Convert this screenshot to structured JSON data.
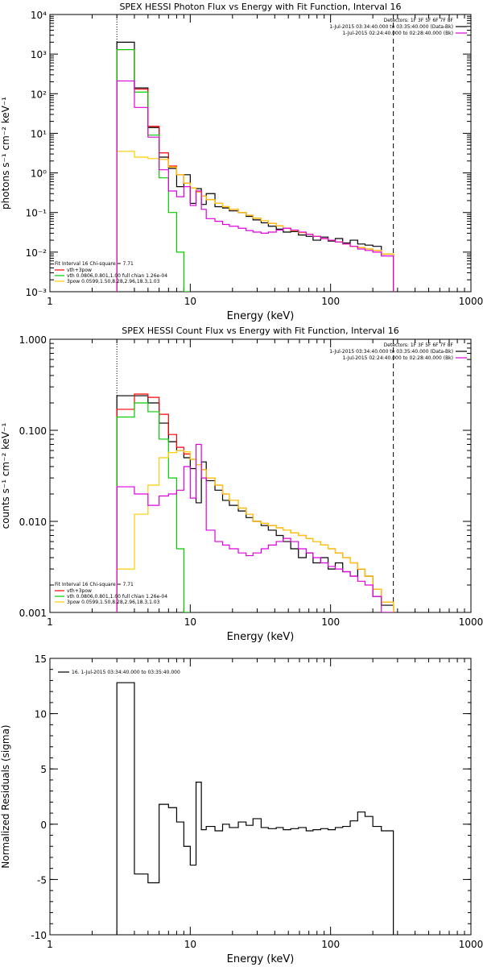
{
  "chart_data": [
    {
      "type": "line",
      "title": "SPEX HESSI Photon Flux vs Energy with Fit Function, Interval 16",
      "xlabel": "Energy (keV)",
      "ylabel": "photons s⁻¹ cm⁻² keV⁻¹",
      "xscale": "log",
      "yscale": "log",
      "xlim": [
        1,
        1000
      ],
      "ylim": [
        0.001,
        10000
      ],
      "xticks": [
        1,
        10,
        100,
        1000
      ],
      "xtick_labels": [
        "1",
        "10",
        "100",
        "1000"
      ],
      "yticks": [
        0.001,
        0.01,
        0.1,
        1,
        10,
        100,
        1000,
        10000
      ],
      "ytick_labels": [
        "10⁻³",
        "10⁻²",
        "10⁻¹",
        "10⁰",
        "10¹",
        "10²",
        "10³",
        "10⁴"
      ],
      "vlines": [
        {
          "x": 3.0,
          "style": "dotted"
        },
        {
          "x": 280,
          "style": "dashed"
        }
      ],
      "legend_top_right": [
        "Detectors: 1F 3F 5F 6F 7F 8F",
        "1-Jul-2015 03:34:40.000 to 03:35:40.000 (Data-Bk)",
        "1-Jul-2015 02:24:40.000 to 02:28:40.000 (Bk)"
      ],
      "legend_bottom_left": {
        "header": "Fit Interval 16   Chi-square = 7.71",
        "entries": [
          "vth+3pow",
          "vth 0.0806,0.801,1.00  full chian 1.26e-04",
          "3pow 0.0599,1.50,8.28,2.96,18.3,1.03"
        ]
      },
      "series": [
        {
          "name": "1-Jul-2015 03:34:40.000 to 03:35:40.000 (Data-Bk)",
          "color": "#000000",
          "edges": [
            3,
            4,
            5,
            6,
            7,
            8,
            9,
            10,
            11,
            12,
            13,
            15,
            17,
            19,
            22,
            25,
            28,
            32,
            36,
            41,
            46,
            52,
            59,
            67,
            75,
            85,
            96,
            108,
            122,
            138,
            156,
            176,
            200,
            230,
            280
          ],
          "values": [
            2000,
            140,
            14,
            2.5,
            1.3,
            0.45,
            0.9,
            0.17,
            0.4,
            0.16,
            0.3,
            0.14,
            0.13,
            0.11,
            0.1,
            0.08,
            0.065,
            0.055,
            0.045,
            0.038,
            0.032,
            0.033,
            0.027,
            0.025,
            0.02,
            0.024,
            0.019,
            0.022,
            0.017,
            0.02,
            0.016,
            0.015,
            0.014,
            0.009
          ]
        },
        {
          "name": "vth+3pow",
          "color": "#ff0000",
          "edges": [
            3,
            4,
            5,
            6,
            7,
            8,
            9,
            10,
            11,
            12,
            13,
            15,
            17,
            19,
            22,
            25,
            28,
            32,
            36,
            41,
            46,
            52,
            59,
            67,
            75,
            85,
            96,
            108,
            122,
            138,
            156,
            176,
            200,
            230,
            280
          ],
          "values": [
            1300,
            130,
            15,
            3.2,
            1.5,
            0.9,
            0.55,
            0.42,
            0.33,
            0.26,
            0.21,
            0.17,
            0.14,
            0.12,
            0.1,
            0.085,
            0.072,
            0.062,
            0.053,
            0.046,
            0.04,
            0.035,
            0.031,
            0.028,
            0.025,
            0.022,
            0.02,
            0.018,
            0.016,
            0.014,
            0.013,
            0.012,
            0.011,
            0.009
          ]
        },
        {
          "name": "vth 0.0806,0.801,1.00  full chian 1.26e-04",
          "color": "#00cc00",
          "edges": [
            3,
            4,
            5,
            6,
            7,
            8,
            9,
            10
          ],
          "values": [
            1300,
            110,
            9,
            0.75,
            0.1,
            0.01,
            0.001
          ]
        },
        {
          "name": "3pow 0.0599,1.50,8.28,2.96,18.3,1.03",
          "color": "#ffcc00",
          "edges": [
            3,
            4,
            5,
            6,
            7,
            8,
            9,
            10,
            11,
            12,
            13,
            15,
            17,
            19,
            22,
            25,
            28,
            32,
            36,
            41,
            46,
            52,
            59,
            67,
            75,
            85,
            96,
            108,
            122,
            138,
            156,
            176,
            200,
            230,
            280
          ],
          "values": [
            3.5,
            2.5,
            2.3,
            2.2,
            1.4,
            0.9,
            0.55,
            0.42,
            0.33,
            0.26,
            0.21,
            0.17,
            0.14,
            0.12,
            0.1,
            0.085,
            0.072,
            0.062,
            0.053,
            0.046,
            0.04,
            0.035,
            0.031,
            0.028,
            0.025,
            0.022,
            0.02,
            0.018,
            0.016,
            0.014,
            0.013,
            0.012,
            0.011,
            0.009
          ]
        },
        {
          "name": "1-Jul-2015 02:24:40.000 to 02:28:40.000 (Bk)",
          "color": "#dd00dd",
          "edges": [
            3,
            4,
            5,
            6,
            7,
            8,
            9,
            10,
            11,
            12,
            13,
            15,
            17,
            19,
            22,
            25,
            28,
            32,
            36,
            41,
            46,
            52,
            59,
            67,
            75,
            85,
            96,
            108,
            122,
            138,
            156,
            176,
            200,
            230,
            280
          ],
          "values": [
            210,
            45,
            8,
            1.2,
            0.35,
            0.25,
            0.45,
            0.15,
            0.35,
            0.12,
            0.07,
            0.06,
            0.05,
            0.045,
            0.04,
            0.035,
            0.032,
            0.03,
            0.032,
            0.036,
            0.04,
            0.036,
            0.032,
            0.028,
            0.025,
            0.022,
            0.02,
            0.018,
            0.016,
            0.014,
            0.012,
            0.011,
            0.01,
            0.008
          ]
        }
      ]
    },
    {
      "type": "line",
      "title": "SPEX HESSI Count Flux vs Energy with Fit Function, Interval 16",
      "xlabel": "Energy (keV)",
      "ylabel": "counts s⁻¹ cm⁻² keV⁻¹",
      "xscale": "log",
      "yscale": "log",
      "xlim": [
        1,
        1000
      ],
      "ylim": [
        0.001,
        1.0
      ],
      "xticks": [
        1,
        10,
        100,
        1000
      ],
      "xtick_labels": [
        "1",
        "10",
        "100",
        "1000"
      ],
      "yticks": [
        0.001,
        0.01,
        0.1,
        1.0
      ],
      "ytick_labels": [
        "0.001",
        "0.010",
        "0.100",
        "1.000"
      ],
      "vlines": [
        {
          "x": 3.0,
          "style": "dotted"
        },
        {
          "x": 280,
          "style": "dashed"
        }
      ],
      "legend_top_right": [
        "Detectors: 1F 3F 5F 6F 7F 8F",
        "1-Jul-2015 03:34:40.000 to 03:35:40.000 (Data-Bk)",
        "1-Jul-2015 02:24:40.000 to 02:28:40.000 (Bk)"
      ],
      "legend_bottom_left": {
        "header": "Fit Interval 16   Chi-square = 7.71",
        "entries": [
          "vth+3pow",
          "vth 0.0806,0.801,1.00  full chian 1.26e-04",
          "3pow 0.0599,1.50,8.28,2.96,18.3,1.03"
        ]
      },
      "series": [
        {
          "name": "1-Jul-2015 03:34:40.000 to 03:35:40.000 (Data-Bk)",
          "color": "#000000",
          "edges": [
            3,
            4,
            5,
            6,
            7,
            8,
            9,
            10,
            11,
            12,
            13,
            15,
            17,
            19,
            22,
            25,
            28,
            32,
            36,
            41,
            46,
            52,
            59,
            67,
            75,
            85,
            96,
            108,
            122,
            138,
            156,
            176,
            200,
            230,
            280
          ],
          "values": [
            0.24,
            0.24,
            0.2,
            0.12,
            0.075,
            0.06,
            0.05,
            0.038,
            0.016,
            0.045,
            0.028,
            0.022,
            0.017,
            0.015,
            0.013,
            0.011,
            0.01,
            0.009,
            0.008,
            0.007,
            0.006,
            0.005,
            0.004,
            0.0045,
            0.0035,
            0.004,
            0.003,
            0.0035,
            0.0028,
            0.0025,
            0.003,
            0.0025,
            0.0015,
            0.0012
          ]
        },
        {
          "name": "vth+3pow",
          "color": "#ff0000",
          "edges": [
            3,
            4,
            5,
            6,
            7,
            8,
            9,
            10,
            11,
            12,
            13,
            15,
            17,
            19,
            22,
            25,
            28,
            32,
            36,
            41,
            46,
            52,
            59,
            67,
            75,
            85,
            96,
            108,
            122,
            138,
            156,
            176,
            200,
            230,
            280
          ],
          "values": [
            0.17,
            0.25,
            0.23,
            0.15,
            0.09,
            0.065,
            0.055,
            0.048,
            0.042,
            0.037,
            0.03,
            0.025,
            0.02,
            0.017,
            0.014,
            0.012,
            0.01,
            0.0095,
            0.009,
            0.0085,
            0.008,
            0.0075,
            0.007,
            0.0065,
            0.006,
            0.0055,
            0.005,
            0.0045,
            0.004,
            0.0035,
            0.003,
            0.0025,
            0.0018,
            0.0013
          ]
        },
        {
          "name": "vth 0.0806,0.801,1.00  full chian 1.26e-04",
          "color": "#00cc00",
          "edges": [
            3,
            4,
            5,
            6,
            7,
            8,
            9,
            10
          ],
          "values": [
            0.14,
            0.2,
            0.16,
            0.08,
            0.03,
            0.005,
            0.001
          ]
        },
        {
          "name": "3pow 0.0599,1.50,8.28,2.96,18.3,1.03",
          "color": "#ffcc00",
          "edges": [
            3,
            4,
            5,
            6,
            7,
            8,
            9,
            10,
            11,
            12,
            13,
            15,
            17,
            19,
            22,
            25,
            28,
            32,
            36,
            41,
            46,
            52,
            59,
            67,
            75,
            85,
            96,
            108,
            122,
            138,
            156,
            176,
            200,
            230,
            280
          ],
          "values": [
            0.003,
            0.012,
            0.025,
            0.05,
            0.057,
            0.06,
            0.058,
            0.048,
            0.042,
            0.037,
            0.03,
            0.025,
            0.02,
            0.017,
            0.014,
            0.012,
            0.01,
            0.0095,
            0.009,
            0.0085,
            0.008,
            0.0075,
            0.007,
            0.0065,
            0.006,
            0.0055,
            0.005,
            0.0045,
            0.004,
            0.0035,
            0.003,
            0.0025,
            0.0018,
            0.0013
          ]
        },
        {
          "name": "1-Jul-2015 02:24:40.000 to 02:28:40.000 (Bk)",
          "color": "#dd00dd",
          "edges": [
            3,
            4,
            5,
            6,
            7,
            8,
            9,
            10,
            11,
            12,
            13,
            15,
            17,
            19,
            22,
            25,
            28,
            32,
            36,
            41,
            46,
            52,
            59,
            67,
            75,
            85,
            96,
            108,
            122,
            138,
            156,
            176,
            200,
            230,
            280
          ],
          "values": [
            0.024,
            0.02,
            0.015,
            0.019,
            0.02,
            0.022,
            0.04,
            0.018,
            0.07,
            0.03,
            0.008,
            0.006,
            0.0055,
            0.005,
            0.0045,
            0.0042,
            0.0045,
            0.005,
            0.0055,
            0.006,
            0.0065,
            0.006,
            0.005,
            0.0045,
            0.004,
            0.0035,
            0.0032,
            0.003,
            0.0028,
            0.0025,
            0.0022,
            0.002,
            0.0015,
            0.001
          ]
        }
      ]
    },
    {
      "type": "line",
      "title": "",
      "xlabel": "Energy (keV)",
      "ylabel": "Normalized Residuals (sigma)",
      "xscale": "log",
      "yscale": "linear",
      "xlim": [
        1,
        1000
      ],
      "ylim": [
        -10,
        15
      ],
      "xticks": [
        1,
        10,
        100,
        1000
      ],
      "xtick_labels": [
        "1",
        "10",
        "100",
        "1000"
      ],
      "yticks": [
        -10,
        -5,
        0,
        5,
        10,
        15
      ],
      "ytick_labels": [
        "-10",
        "-5",
        "0",
        "5",
        "10",
        "15"
      ],
      "legend_top_left": "16.  1-Jul-2015 03:34:40.000 to 03:35:40.000",
      "series": [
        {
          "name": "16.  1-Jul-2015 03:34:40.000 to 03:35:40.000",
          "color": "#000000",
          "edges": [
            3,
            4,
            5,
            6,
            7,
            8,
            9,
            10,
            11,
            12,
            13,
            15,
            17,
            19,
            22,
            25,
            28,
            32,
            36,
            41,
            46,
            52,
            59,
            67,
            75,
            85,
            96,
            108,
            122,
            138,
            156,
            176,
            200,
            230,
            280
          ],
          "values": [
            12.8,
            -4.5,
            -5.3,
            1.8,
            1.5,
            0.2,
            -2.0,
            -3.7,
            3.8,
            -0.5,
            -0.2,
            -0.6,
            0.0,
            -0.3,
            0.2,
            -0.1,
            0.5,
            -0.3,
            -0.4,
            -0.3,
            -0.5,
            -0.4,
            -0.3,
            -0.6,
            -0.5,
            -0.4,
            -0.5,
            -0.3,
            -0.2,
            0.3,
            1.1,
            0.7,
            -0.2,
            -0.6
          ]
        }
      ]
    }
  ]
}
